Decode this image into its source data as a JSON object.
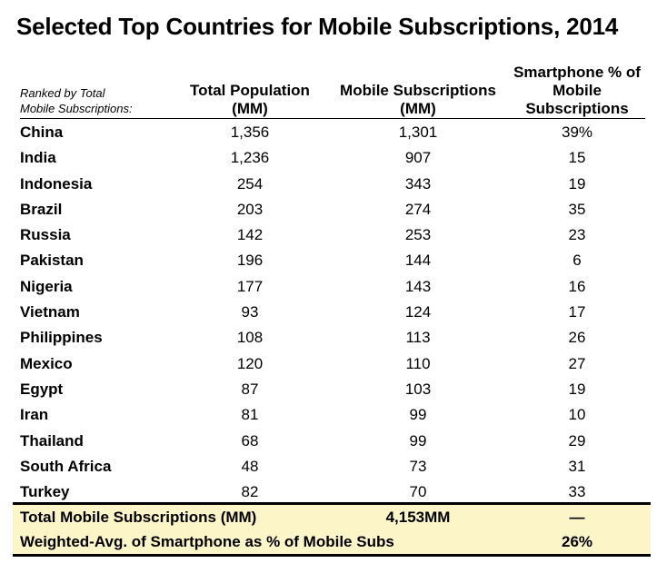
{
  "chart_data": {
    "type": "table",
    "title": "Selected Top Countries for Mobile Subscriptions, 2014",
    "rank_note": [
      "Ranked by Total",
      "Mobile Subscriptions:"
    ],
    "columns": [
      {
        "lines": [
          "Total Population",
          "(MM)"
        ]
      },
      {
        "lines": [
          "Mobile Subscriptions",
          "(MM)"
        ]
      },
      {
        "lines": [
          "Smartphone % of",
          "Mobile",
          "Subscriptions"
        ]
      }
    ],
    "rows": [
      {
        "country": "China",
        "population": "1,356",
        "mobile": "1,301",
        "smartphone": "39%"
      },
      {
        "country": "India",
        "population": "1,236",
        "mobile": "907",
        "smartphone": "15"
      },
      {
        "country": "Indonesia",
        "population": "254",
        "mobile": "343",
        "smartphone": "19"
      },
      {
        "country": "Brazil",
        "population": "203",
        "mobile": "274",
        "smartphone": "35"
      },
      {
        "country": "Russia",
        "population": "142",
        "mobile": "253",
        "smartphone": "23"
      },
      {
        "country": "Pakistan",
        "population": "196",
        "mobile": "144",
        "smartphone": "6"
      },
      {
        "country": "Nigeria",
        "population": "177",
        "mobile": "143",
        "smartphone": "16"
      },
      {
        "country": "Vietnam",
        "population": "93",
        "mobile": "124",
        "smartphone": "17"
      },
      {
        "country": "Philippines",
        "population": "108",
        "mobile": "113",
        "smartphone": "26"
      },
      {
        "country": "Mexico",
        "population": "120",
        "mobile": "110",
        "smartphone": "27"
      },
      {
        "country": "Egypt",
        "population": "87",
        "mobile": "103",
        "smartphone": "19"
      },
      {
        "country": "Iran",
        "population": "81",
        "mobile": "99",
        "smartphone": "10"
      },
      {
        "country": "Thailand",
        "population": "68",
        "mobile": "99",
        "smartphone": "29"
      },
      {
        "country": "South Africa",
        "population": "48",
        "mobile": "73",
        "smartphone": "31"
      },
      {
        "country": "Turkey",
        "population": "82",
        "mobile": "70",
        "smartphone": "33"
      }
    ],
    "summary": [
      {
        "label": "Total Mobile Subscriptions (MM)",
        "mobile": "4,153MM",
        "smartphone": "—"
      },
      {
        "label": "Weighted-Avg. of Smartphone as % of Mobile Subs",
        "mobile": "",
        "smartphone": "26%"
      }
    ],
    "colors": {
      "summary_background": "#fbf5c8",
      "rules": "#000000"
    }
  }
}
